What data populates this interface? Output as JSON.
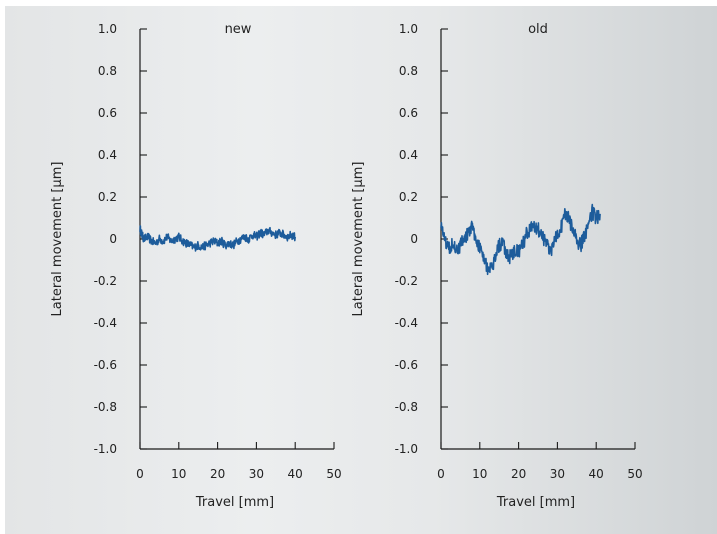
{
  "colors": {
    "series": "#1d5c9b",
    "axis": "#1a1a1a",
    "text": "#222222"
  },
  "chart_data": [
    {
      "type": "line",
      "title": "new",
      "xlabel": "Travel [mm]",
      "ylabel": "Lateral movement [µm]",
      "xlim": [
        0,
        50
      ],
      "ylim": [
        -1.0,
        1.0
      ],
      "xticks": [
        0,
        10,
        20,
        30,
        40,
        50
      ],
      "yticks": [
        1.0,
        0.8,
        0.6,
        0.4,
        0.2,
        0,
        -0.2,
        -0.4,
        -0.6,
        -0.8,
        -1.0
      ],
      "ytick_labels": [
        "1.0",
        "0.8",
        "0.6",
        "0.4",
        "0.2",
        "0",
        "-0.2",
        "-0.4",
        "-0.6",
        "-0.8",
        "-1.0"
      ],
      "grid": false,
      "series": [
        {
          "x": [
            0,
            0.5,
            1,
            2,
            3,
            4,
            5,
            6,
            7,
            8,
            9,
            10,
            11,
            12,
            13,
            14,
            15,
            16,
            17,
            18,
            19,
            20,
            21,
            22,
            23,
            24,
            25,
            26,
            27,
            28,
            29,
            30,
            31,
            32,
            33,
            34,
            35,
            36,
            37,
            38,
            39,
            40
          ],
          "y": [
            0.05,
            0.02,
            0.0,
            0.01,
            -0.01,
            -0.02,
            0.0,
            -0.01,
            0.01,
            -0.01,
            0.0,
            0.01,
            -0.01,
            -0.02,
            -0.03,
            -0.04,
            -0.03,
            -0.04,
            -0.03,
            -0.02,
            -0.01,
            -0.02,
            -0.01,
            -0.03,
            -0.02,
            -0.03,
            -0.01,
            0.0,
            0.01,
            0.0,
            0.02,
            0.01,
            0.03,
            0.02,
            0.04,
            0.03,
            0.02,
            0.03,
            0.02,
            0.01,
            0.02,
            0.01
          ],
          "noise_band": 0.02
        }
      ]
    },
    {
      "type": "line",
      "title": "old",
      "xlabel": "Travel [mm]",
      "ylabel": "Lateral movement [µm]",
      "xlim": [
        0,
        50
      ],
      "ylim": [
        -1.0,
        1.0
      ],
      "xticks": [
        0,
        10,
        20,
        30,
        40,
        50
      ],
      "yticks": [
        1.0,
        0.8,
        0.6,
        0.4,
        0.2,
        0,
        -0.2,
        -0.4,
        -0.6,
        -0.8,
        -1.0
      ],
      "ytick_labels": [
        "1.0",
        "0.8",
        "0.6",
        "0.4",
        "0.2",
        "0",
        "-0.2",
        "-0.4",
        "-0.6",
        "-0.8",
        "-1.0"
      ],
      "grid": false,
      "series": [
        {
          "x": [
            0,
            1,
            2,
            3,
            4,
            5,
            6,
            7,
            8,
            9,
            10,
            11,
            12,
            13,
            14,
            15,
            16,
            17,
            18,
            19,
            20,
            21,
            22,
            23,
            24,
            25,
            26,
            27,
            28,
            29,
            30,
            31,
            32,
            33,
            34,
            35,
            36,
            37,
            38,
            39,
            40,
            41
          ],
          "y": [
            0.08,
            -0.01,
            -0.04,
            -0.02,
            -0.06,
            -0.03,
            0.0,
            0.03,
            0.06,
            0.0,
            -0.04,
            -0.08,
            -0.14,
            -0.15,
            -0.08,
            -0.03,
            -0.02,
            -0.07,
            -0.09,
            -0.05,
            -0.06,
            -0.03,
            0.02,
            0.05,
            0.07,
            0.05,
            0.01,
            -0.02,
            -0.06,
            -0.03,
            0.03,
            0.06,
            0.12,
            0.09,
            0.04,
            -0.01,
            -0.03,
            0.02,
            0.06,
            0.13,
            0.1,
            0.12
          ],
          "noise_band": 0.035
        }
      ]
    }
  ]
}
